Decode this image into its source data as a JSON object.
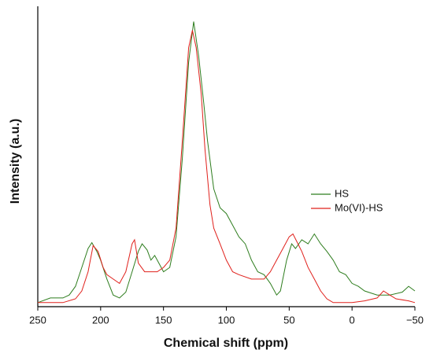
{
  "chart_data": {
    "type": "line",
    "xlabel": "Chemical shift (ppm)",
    "ylabel": "Intensity (a.u.)",
    "xlim": [
      250,
      -50
    ],
    "xticks": [
      250,
      200,
      150,
      100,
      50,
      0,
      {
        "value": -50,
        "label": "−50"
      }
    ],
    "ylim": [
      0,
      100
    ],
    "legend": "right",
    "series": [
      {
        "name": "HS",
        "color": "#2e7d1e",
        "x": [
          250,
          240,
          230,
          225,
          220,
          215,
          210,
          207,
          203,
          200,
          195,
          190,
          185,
          180,
          175,
          170,
          167,
          163,
          160,
          157,
          155,
          150,
          145,
          140,
          135,
          130,
          126,
          122,
          118,
          115,
          110,
          105,
          100,
          95,
          90,
          85,
          80,
          75,
          70,
          65,
          60,
          57,
          52,
          48,
          45,
          40,
          35,
          30,
          25,
          20,
          15,
          10,
          5,
          0,
          -5,
          -10,
          -20,
          -30,
          -40,
          -45,
          -50
        ],
        "values": [
          1.4,
          3,
          3,
          4,
          7,
          13.5,
          20,
          22,
          19,
          16,
          9.5,
          4,
          3,
          5,
          12,
          19,
          21.6,
          19.5,
          16,
          17.6,
          16,
          12,
          13.5,
          24,
          51,
          84,
          98,
          86,
          70,
          57,
          40.5,
          34,
          32,
          28,
          24,
          21.6,
          16,
          12,
          11,
          8,
          4,
          5.4,
          16,
          21.6,
          20,
          23,
          21.6,
          25,
          21.6,
          19,
          16,
          12,
          11,
          8,
          7,
          5.4,
          4,
          4,
          5,
          7,
          5.4
        ]
      },
      {
        "name": "Mo(VI)-HS",
        "color": "#e0201b",
        "x": [
          250,
          240,
          230,
          220,
          215,
          210,
          206,
          202,
          198,
          195,
          190,
          185,
          180,
          175,
          173,
          170,
          165,
          160,
          155,
          150,
          145,
          140,
          135,
          130,
          127,
          124,
          120,
          117,
          113,
          110,
          105,
          100,
          95,
          90,
          80,
          70,
          65,
          60,
          55,
          50,
          47,
          43,
          40,
          35,
          30,
          25,
          20,
          15,
          10,
          0,
          -10,
          -20,
          -25,
          -30,
          -35,
          -45,
          -50
        ],
        "values": [
          1.4,
          1.4,
          1.4,
          2.7,
          5.4,
          12,
          21,
          19,
          13.5,
          11,
          9.5,
          8,
          12,
          21.6,
          23,
          15,
          12,
          12,
          12,
          13.5,
          16,
          27,
          57,
          89,
          95,
          89,
          73,
          54,
          35,
          27,
          21.6,
          16,
          12,
          11,
          9.5,
          9.5,
          12,
          16,
          20,
          24,
          25,
          21.6,
          19,
          13.5,
          9.5,
          5.4,
          2.7,
          1.4,
          1.4,
          1.4,
          2,
          3,
          5.4,
          4,
          2.7,
          2,
          1.4
        ]
      }
    ]
  }
}
